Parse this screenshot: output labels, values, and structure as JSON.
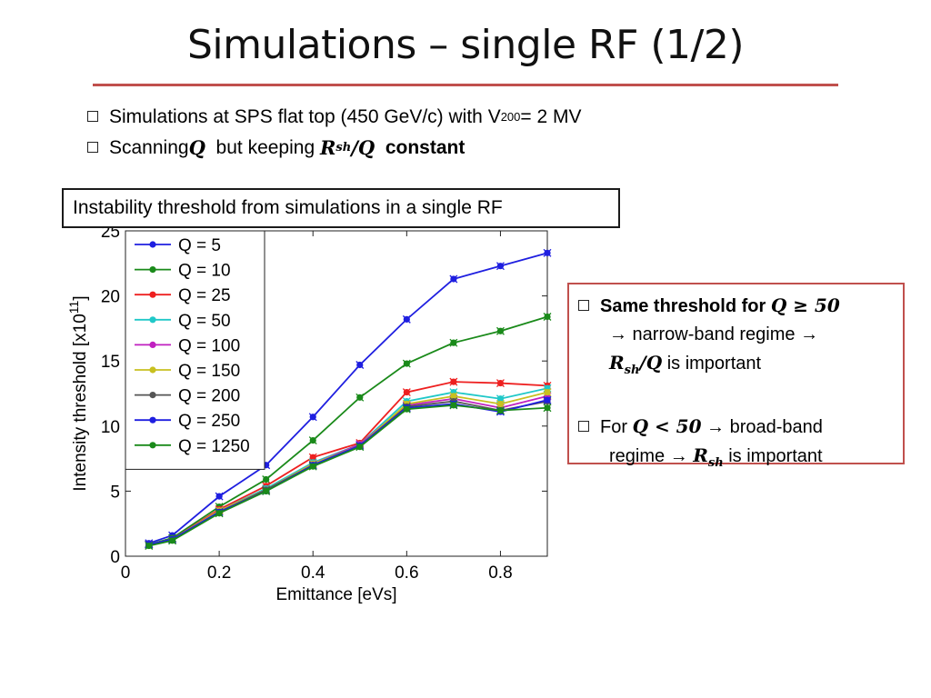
{
  "slide": {
    "title": "Simulations – single RF (1/2)",
    "bullet1_pre": "Simulations at SPS flat top (450 GeV/c) with V",
    "bullet1_sub": "200",
    "bullet1_post": " = 2 MV",
    "bullet2_pre": "Scanning ",
    "bullet2_q": "Q",
    "bullet2_mid": "  but keeping ",
    "bullet2_r": "R",
    "bullet2_r_sub": "sh",
    "bullet2_slash": "/Q",
    "bullet2_post": "  constant",
    "callout": "Instability threshold from simulations in a single RF",
    "note": {
      "line1_text": "Same threshold for ",
      "line1_math": "Q ≥ 50",
      "line2": "→ narrow-band regime →",
      "line3_math_r": "R",
      "line3_math_sub": "sh",
      "line3_math_q": "/Q",
      "line3_text": " is important",
      "line4_text": "For ",
      "line4_math": "Q < 50",
      "line4_post": " → broad-band",
      "line5_text": "regime → ",
      "line5_math_r": "R",
      "line5_math_sub": "sh",
      "line5_post": " is important"
    },
    "colors": {
      "title_rule": "#c0504d",
      "note_border": "#c0504d"
    }
  },
  "chart_data": {
    "type": "line",
    "xlabel": "Emittance [eVs]",
    "ylabel": "Intensity threshold [x10",
    "ylabel_exp": "11",
    "ylabel_close": "]",
    "xlim": [
      0,
      0.9
    ],
    "ylim": [
      0,
      25
    ],
    "xticks": [
      "0",
      "0.2",
      "0.4",
      "0.6",
      "0.8"
    ],
    "yticks": [
      "0",
      "5",
      "10",
      "15",
      "20",
      "25"
    ],
    "legend_position": "top-left",
    "x": [
      0.05,
      0.1,
      0.2,
      0.3,
      0.4,
      0.5,
      0.6,
      0.7,
      0.8,
      0.9
    ],
    "series": [
      {
        "name": "Q = 5",
        "color": "#1f1fe0",
        "values": [
          1.0,
          1.6,
          4.6,
          7.0,
          10.7,
          14.7,
          18.2,
          21.3,
          22.3,
          23.3
        ]
      },
      {
        "name": "Q = 10",
        "color": "#1a8a1a",
        "values": [
          0.9,
          1.4,
          3.8,
          5.9,
          8.9,
          12.2,
          14.8,
          16.4,
          17.3,
          18.4
        ]
      },
      {
        "name": "Q = 25",
        "color": "#ee2020",
        "values": [
          0.9,
          1.3,
          3.6,
          5.4,
          7.6,
          8.7,
          12.6,
          13.4,
          13.3,
          13.1
        ]
      },
      {
        "name": "Q = 50",
        "color": "#20c8c8",
        "values": [
          0.9,
          1.3,
          3.5,
          5.2,
          7.2,
          8.6,
          11.9,
          12.6,
          12.1,
          12.9
        ]
      },
      {
        "name": "Q = 100",
        "color": "#c020c0",
        "values": [
          0.9,
          1.3,
          3.5,
          5.1,
          7.1,
          8.6,
          11.6,
          12.1,
          11.4,
          12.3
        ]
      },
      {
        "name": "Q = 150",
        "color": "#c8c020",
        "values": [
          0.9,
          1.3,
          3.5,
          5.1,
          7.1,
          8.5,
          11.7,
          12.3,
          11.7,
          12.6
        ]
      },
      {
        "name": "Q = 200",
        "color": "#555555",
        "values": [
          0.9,
          1.3,
          3.4,
          5.1,
          7.0,
          8.5,
          11.5,
          11.9,
          11.2,
          11.9
        ]
      },
      {
        "name": "Q = 250",
        "color": "#1f1fe0",
        "values": [
          0.9,
          1.3,
          3.4,
          5.0,
          7.0,
          8.5,
          11.4,
          11.7,
          11.1,
          12.0
        ]
      },
      {
        "name": "Q = 1250",
        "color": "#1a8a1a",
        "values": [
          0.8,
          1.2,
          3.3,
          5.0,
          6.9,
          8.4,
          11.3,
          11.6,
          11.2,
          11.4
        ]
      }
    ]
  }
}
